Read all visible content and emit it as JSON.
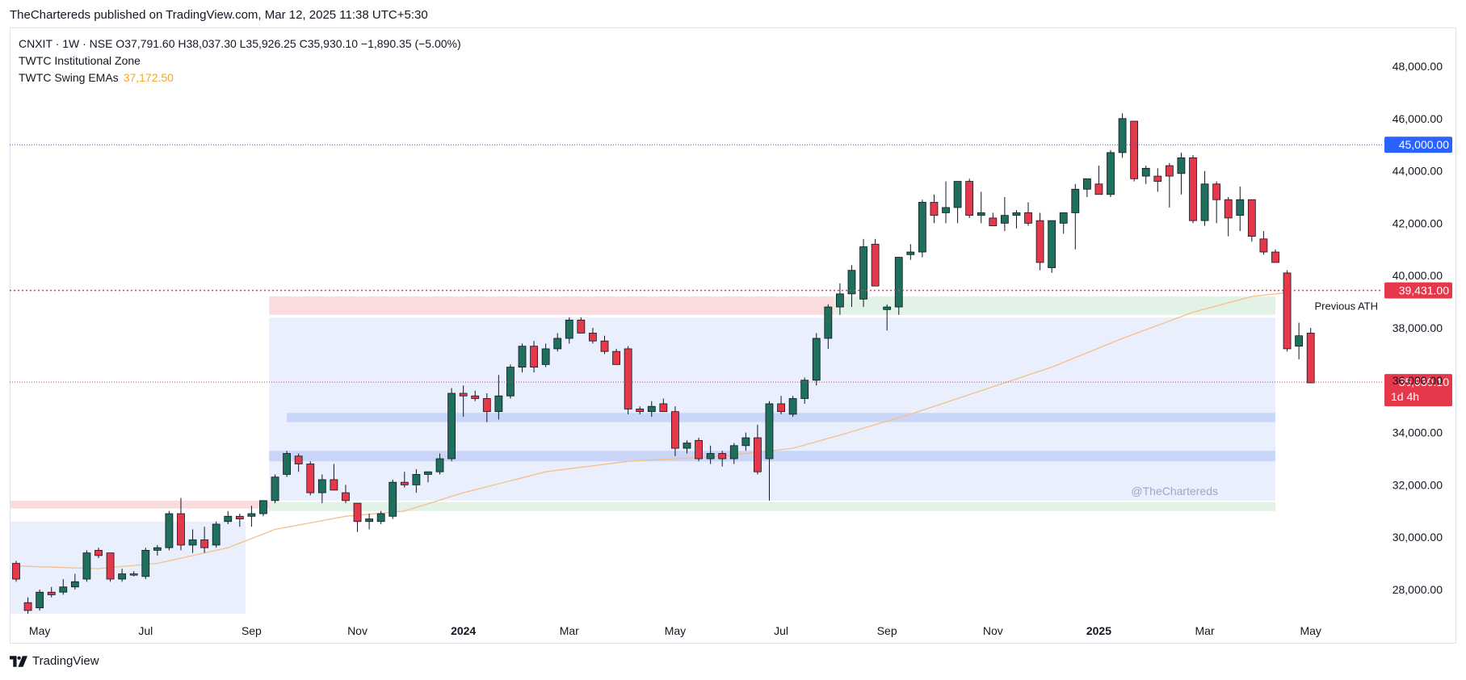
{
  "header": {
    "publisher": "TheChartereds published on TradingView.com, Mar 12, 2025 11:38 UTC+5:30"
  },
  "legend": {
    "symbol_line": "CNXIT · 1W · NSE  O37,791.60  H38,037.30  L35,926.25  C35,930.10  −1,890.35 (−5.00%)",
    "indicator1": "TWTC Institutional Zone",
    "indicator2": "TWTC Swing EMAs",
    "indicator2_value": "37,172.50"
  },
  "footer": {
    "brand": "TradingView",
    "logo_icon": "tradingview-logo-icon"
  },
  "colors": {
    "up": "#1e6f5c",
    "down": "#e5394b",
    "ema": "#f5c08a",
    "blue_zone": "#dbe4fb",
    "red_zone": "#f9d7da",
    "green_zone": "#dff1e3",
    "blue_line": "#2962ff"
  },
  "chart_data": {
    "type": "candlestick",
    "title": "",
    "y_ticks": [
      28000,
      30000,
      32000,
      34000,
      36000,
      38000,
      40000,
      42000,
      44000,
      46000,
      48000
    ],
    "y_tick_labels": [
      "28,000.00",
      "30,000.00",
      "32,000.00",
      "34,000.00",
      "36,000.00",
      "38,000.00",
      "40,000.00",
      "42,000.00",
      "44,000.00",
      "46,000.00",
      "48,000.00"
    ],
    "x_labels": [
      {
        "index": 2,
        "label": "May",
        "bold": false
      },
      {
        "index": 11,
        "label": "Jul",
        "bold": false
      },
      {
        "index": 20,
        "label": "Sep",
        "bold": false
      },
      {
        "index": 29,
        "label": "Nov",
        "bold": false
      },
      {
        "index": 38,
        "label": "2024",
        "bold": true
      },
      {
        "index": 47,
        "label": "Mar",
        "bold": false
      },
      {
        "index": 56,
        "label": "May",
        "bold": false
      },
      {
        "index": 65,
        "label": "Jul",
        "bold": false
      },
      {
        "index": 74,
        "label": "Sep",
        "bold": false
      },
      {
        "index": 83,
        "label": "Nov",
        "bold": false
      },
      {
        "index": 92,
        "label": "2025",
        "bold": true
      },
      {
        "index": 101,
        "label": "Mar",
        "bold": false
      },
      {
        "index": 110,
        "label": "May",
        "bold": false
      }
    ],
    "candles": [
      [
        29000,
        29100,
        28300,
        28400
      ],
      [
        27500,
        27700,
        27000,
        27200
      ],
      [
        27300,
        28000,
        27200,
        27900
      ],
      [
        27900,
        28100,
        27700,
        27800
      ],
      [
        27900,
        28400,
        27800,
        28100
      ],
      [
        28100,
        28600,
        28000,
        28300
      ],
      [
        28400,
        29500,
        28300,
        29400
      ],
      [
        29500,
        29600,
        29200,
        29300
      ],
      [
        29400,
        29400,
        28300,
        28400
      ],
      [
        28400,
        28800,
        28300,
        28600
      ],
      [
        28600,
        28700,
        28500,
        28550
      ],
      [
        28500,
        29600,
        28400,
        29500
      ],
      [
        29500,
        29700,
        29300,
        29600
      ],
      [
        29600,
        31000,
        29500,
        30900
      ],
      [
        30900,
        31500,
        29500,
        29700
      ],
      [
        29700,
        30300,
        29400,
        29900
      ],
      [
        29900,
        30400,
        29400,
        29600
      ],
      [
        29700,
        30600,
        29600,
        30500
      ],
      [
        30600,
        31000,
        30500,
        30800
      ],
      [
        30800,
        30900,
        30400,
        30700
      ],
      [
        30800,
        31200,
        30400,
        30900
      ],
      [
        30900,
        31300,
        30800,
        31400
      ],
      [
        31400,
        32400,
        31300,
        32300
      ],
      [
        32400,
        33300,
        32300,
        33200
      ],
      [
        33100,
        33200,
        32500,
        32800
      ],
      [
        32800,
        32900,
        31600,
        31700
      ],
      [
        31700,
        32400,
        31300,
        32200
      ],
      [
        32200,
        32800,
        31800,
        31800
      ],
      [
        31700,
        32000,
        31300,
        31400
      ],
      [
        31300,
        31300,
        30200,
        30600
      ],
      [
        30600,
        30900,
        30300,
        30700
      ],
      [
        30600,
        31000,
        30500,
        30900
      ],
      [
        30800,
        32200,
        30700,
        32100
      ],
      [
        32100,
        32500,
        31900,
        32000
      ],
      [
        32000,
        32600,
        31700,
        32400
      ],
      [
        32400,
        32500,
        32100,
        32500
      ],
      [
        32500,
        33200,
        32400,
        33000
      ],
      [
        33000,
        35700,
        32900,
        35500
      ],
      [
        35500,
        35800,
        34600,
        35400
      ],
      [
        35400,
        35600,
        35200,
        35300
      ],
      [
        35300,
        35500,
        34400,
        34800
      ],
      [
        34800,
        36200,
        34500,
        35400
      ],
      [
        35400,
        36600,
        35300,
        36500
      ],
      [
        36500,
        37400,
        36300,
        37300
      ],
      [
        37300,
        37500,
        36300,
        36500
      ],
      [
        36600,
        37400,
        36500,
        37200
      ],
      [
        37200,
        37800,
        37100,
        37600
      ],
      [
        37600,
        38400,
        37400,
        38300
      ],
      [
        38300,
        38400,
        37800,
        37800
      ],
      [
        37800,
        38000,
        37400,
        37500
      ],
      [
        37500,
        37700,
        37000,
        37100
      ],
      [
        37100,
        37200,
        36600,
        36600
      ],
      [
        37200,
        37300,
        34700,
        34900
      ],
      [
        34900,
        35000,
        34700,
        34800
      ],
      [
        34800,
        35200,
        34600,
        35000
      ],
      [
        35100,
        35300,
        34800,
        34800
      ],
      [
        34800,
        35000,
        33100,
        33400
      ],
      [
        33400,
        33700,
        33200,
        33600
      ],
      [
        33700,
        33800,
        32900,
        33000
      ],
      [
        33000,
        33500,
        32800,
        33200
      ],
      [
        33200,
        33300,
        32700,
        33000
      ],
      [
        33000,
        33600,
        32800,
        33500
      ],
      [
        33500,
        34000,
        33300,
        33800
      ],
      [
        33800,
        34300,
        32400,
        32500
      ],
      [
        33000,
        35200,
        31400,
        35100
      ],
      [
        35100,
        35400,
        34700,
        34800
      ],
      [
        34700,
        35400,
        34600,
        35300
      ],
      [
        35300,
        36100,
        35100,
        36000
      ],
      [
        36000,
        37800,
        35800,
        37600
      ],
      [
        37600,
        38900,
        37200,
        38800
      ],
      [
        38800,
        39700,
        38500,
        39300
      ],
      [
        39300,
        40400,
        38800,
        40200
      ],
      [
        39100,
        41400,
        38800,
        41100
      ],
      [
        41200,
        41400,
        39600,
        39600
      ],
      [
        38700,
        38900,
        37900,
        38800
      ],
      [
        38800,
        40700,
        38500,
        40700
      ],
      [
        40800,
        41200,
        40600,
        40900
      ],
      [
        40900,
        42900,
        40700,
        42800
      ],
      [
        42800,
        43100,
        42000,
        42300
      ],
      [
        42400,
        43600,
        42000,
        42600
      ],
      [
        42600,
        43600,
        42000,
        43600
      ],
      [
        43600,
        43700,
        42200,
        42300
      ],
      [
        42300,
        43200,
        42000,
        42400
      ],
      [
        42200,
        42400,
        41900,
        41900
      ],
      [
        42000,
        43000,
        41700,
        42300
      ],
      [
        42300,
        42500,
        41800,
        42400
      ],
      [
        42400,
        42800,
        41900,
        42000
      ],
      [
        42100,
        42400,
        40200,
        40500
      ],
      [
        40300,
        42100,
        40100,
        42100
      ],
      [
        42000,
        42400,
        41600,
        42400
      ],
      [
        42400,
        43500,
        41000,
        43300
      ],
      [
        43300,
        43700,
        43000,
        43700
      ],
      [
        43500,
        44200,
        43100,
        43100
      ],
      [
        43100,
        44800,
        43000,
        44700
      ],
      [
        44700,
        46200,
        44500,
        46000
      ],
      [
        45900,
        45900,
        43600,
        43700
      ],
      [
        43800,
        44200,
        43500,
        44100
      ],
      [
        43800,
        44100,
        43200,
        43600
      ],
      [
        44200,
        44300,
        42600,
        43800
      ],
      [
        43900,
        44700,
        43100,
        44500
      ],
      [
        44500,
        44600,
        42000,
        42100
      ],
      [
        42100,
        44000,
        41900,
        43500
      ],
      [
        43500,
        43600,
        42000,
        42900
      ],
      [
        42900,
        43000,
        41500,
        42200
      ],
      [
        42300,
        43400,
        41700,
        42900
      ],
      [
        42900,
        42900,
        41300,
        41500
      ],
      [
        41400,
        41700,
        40800,
        40900
      ],
      [
        40900,
        41000,
        40500,
        40500
      ],
      [
        40100,
        40200,
        37100,
        37200
      ],
      [
        37300,
        38200,
        36800,
        37700
      ],
      [
        37800,
        38000,
        35900,
        35900
      ]
    ],
    "ema": [
      [
        0,
        28900
      ],
      [
        7,
        28800
      ],
      [
        12,
        29000
      ],
      [
        18,
        29600
      ],
      [
        22,
        30300
      ],
      [
        28,
        30800
      ],
      [
        33,
        31000
      ],
      [
        38,
        31700
      ],
      [
        45,
        32500
      ],
      [
        52,
        32900
      ],
      [
        60,
        33100
      ],
      [
        66,
        33400
      ],
      [
        70,
        33900
      ],
      [
        76,
        34700
      ],
      [
        82,
        35600
      ],
      [
        88,
        36500
      ],
      [
        94,
        37600
      ],
      [
        100,
        38600
      ],
      [
        105,
        39200
      ],
      [
        108,
        39350
      ]
    ],
    "zones": [
      {
        "kind": "blue",
        "x0": -0.5,
        "x1": 19.5,
        "y0": 27000,
        "y1": 30600
      },
      {
        "kind": "blue",
        "x0": 21.5,
        "x1": 107.0,
        "y0": 31400,
        "y1": 38400
      },
      {
        "kind": "red",
        "x0": 21.5,
        "x1": 69.5,
        "y0": 38500,
        "y1": 39200
      },
      {
        "kind": "green",
        "x0": 69.5,
        "x1": 107.0,
        "y0": 38500,
        "y1": 39200
      },
      {
        "kind": "red",
        "x0": -0.5,
        "x1": 21.5,
        "y0": 31100,
        "y1": 31400
      },
      {
        "kind": "green",
        "x0": 21.5,
        "x1": 107.0,
        "y0": 31000,
        "y1": 31350
      },
      {
        "kind": "band",
        "x0": 23.0,
        "x1": 107.0,
        "y0": 34400,
        "y1": 34750
      },
      {
        "kind": "band",
        "x0": 21.5,
        "x1": 107.0,
        "y0": 32900,
        "y1": 33300
      }
    ],
    "levels": [
      {
        "value": 45000,
        "label": "45,000.00",
        "color": "#2962ff",
        "style": "dotted"
      },
      {
        "value": 39431,
        "label": "39,431.00",
        "color": "#e5394b",
        "style": "dotted",
        "note": "Previous ATH"
      },
      {
        "value": 35930.1,
        "label": "35,930.10",
        "sub": "1d 4h",
        "color": "#e5394b",
        "style": "dotted"
      }
    ],
    "watermark": "@TheChartereds"
  }
}
